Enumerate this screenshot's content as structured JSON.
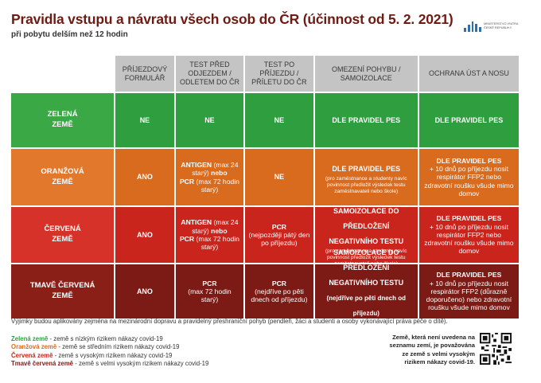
{
  "header": {
    "title": "Pravidla vstupu a návratu všech osob do ČR (účinnost od 5. 2. 2021)",
    "subtitle": "při pobytu delším než 12 hodin",
    "logo_text": "Ministerstvo vnitra České republiky"
  },
  "columns": [
    "PŘÍJEZDOVÝ FORMULÁŘ",
    "TEST PŘED ODJEZDEM / ODLETEM DO ČR",
    "TEST PO PŘÍJEZDU / PŘÍLETU DO ČR",
    "OMEZENÍ POHYBU / SAMOIZOLACE",
    "OCHRANA ÚST A NOSU"
  ],
  "rows": {
    "green": {
      "zone_line1": "ZELENÁ",
      "zone_line2": "ZEMĚ",
      "form": "NE",
      "test_before": "NE",
      "test_after": "NE",
      "isolation": "DLE PRAVIDEL PES",
      "mask": "DLE PRAVIDEL PES"
    },
    "orange": {
      "zone_line1": "ORANŽOVÁ",
      "zone_line2": "ZEMĚ",
      "form": "ANO",
      "tb_antigen": "ANTIGEN",
      "tb_antigen_note": " (max 24 starý) ",
      "tb_nebo": "nebo",
      "tb_pcr": "PCR",
      "tb_pcr_note": " (max 72 hodin starý)",
      "test_after": "NE",
      "isolation": "DLE PRAVIDEL PES",
      "isolation_note": "(pro zaměstnance a studenty navíc povinnost předložit výsledek testu zaměstnavateli nebo škole)",
      "mask_bold": "DLE PRAVIDEL PES",
      "mask_note": "+ 10 dnů po příjezdu nosit respirátor FFP2 nebo zdravotní roušku všude mimo domov"
    },
    "red": {
      "zone_line1": "ČERVENÁ",
      "zone_line2": "ZEMĚ",
      "form": "ANO",
      "tb_antigen": "ANTIGEN",
      "tb_antigen_note": " (max 24 starý) ",
      "tb_nebo": "nebo",
      "tb_pcr": "PCR",
      "tb_pcr_note": " (max 72 hodin starý)",
      "ta_pcr": "PCR",
      "ta_note": "(nejpozději pátý den po příjezdu)",
      "isolation_bold": "SAMOIZOLACE DO PŘEDLOŽENÍ NEGATIVNÍHO TESTU",
      "isolation_note": "(pro zaměstnance a studenty navíc povinnost předložit výsledek testu zaměstnavateli nebo škole)",
      "mask_bold": "DLE PRAVIDEL PES",
      "mask_note": "+ 10 dnů po příjezdu nosit respirátor FFP2 nebo zdravotní roušku všude mimo domov"
    },
    "dark": {
      "zone_line1": "TMAVĚ ČERVENÁ",
      "zone_line2": "ZEMĚ",
      "form": "ANO",
      "tb_pcr": "PCR",
      "tb_note": "(max 72 hodin starý)",
      "ta_pcr": "PCR",
      "ta_note": "(nejdříve po pěti dnech od příjezdu)",
      "isolation_bold": "SAMOIZOLACE DO PŘEDLOŽENÍ NEGATIVNÍHO TESTU",
      "isolation_sub": " (nejdříve po pěti dnech od příjezdu)",
      "isolation_note": "(pro zaměstnance a studenty navíc povinnost předložit výsledek testu zaměstnavateli nebo škole)",
      "mask_bold": "DLE PRAVIDEL PES",
      "mask_note": "+ 10 dnů po příjezdu nosit respirátor FFP2 (důrazně doporučeno) nebo zdravotní roušku všude mimo domov"
    }
  },
  "footer": {
    "note": "Výjimky budou aplikovány zejména na mezinárodní dopravu a pravidelný přeshraniční pohyb (pendleři, žáci a studenti a osoby vykonávající práva péče o dítě).",
    "legend": [
      {
        "name": "Zelená země",
        "desc": " - země s nízkým rizikem nákazy covid-19"
      },
      {
        "name": "Oranžová země",
        "desc": " - země se středním rizikem nákazy covid-19"
      },
      {
        "name": "Červená země",
        "desc": " - země s vysokým rizikem nákazy covid-19"
      },
      {
        "name": "Tmavě červená země",
        "desc": " - země s velmi vysokým rizikem nákazy covid-19"
      }
    ],
    "side_note": "Země, která není uvedena na seznamu zemí, je považována ze země s velmi vysokým rizikem nákazy covid-19."
  },
  "colors": {
    "green": "#2e9e3f",
    "orange": "#d96b1f",
    "red": "#c9251c",
    "dark_red": "#7c1a15",
    "header_gray": "#c4c4c4",
    "title": "#6e1b14"
  },
  "icons": {
    "logo": "ministry-logo-icon",
    "qr": "qr-code-icon"
  }
}
